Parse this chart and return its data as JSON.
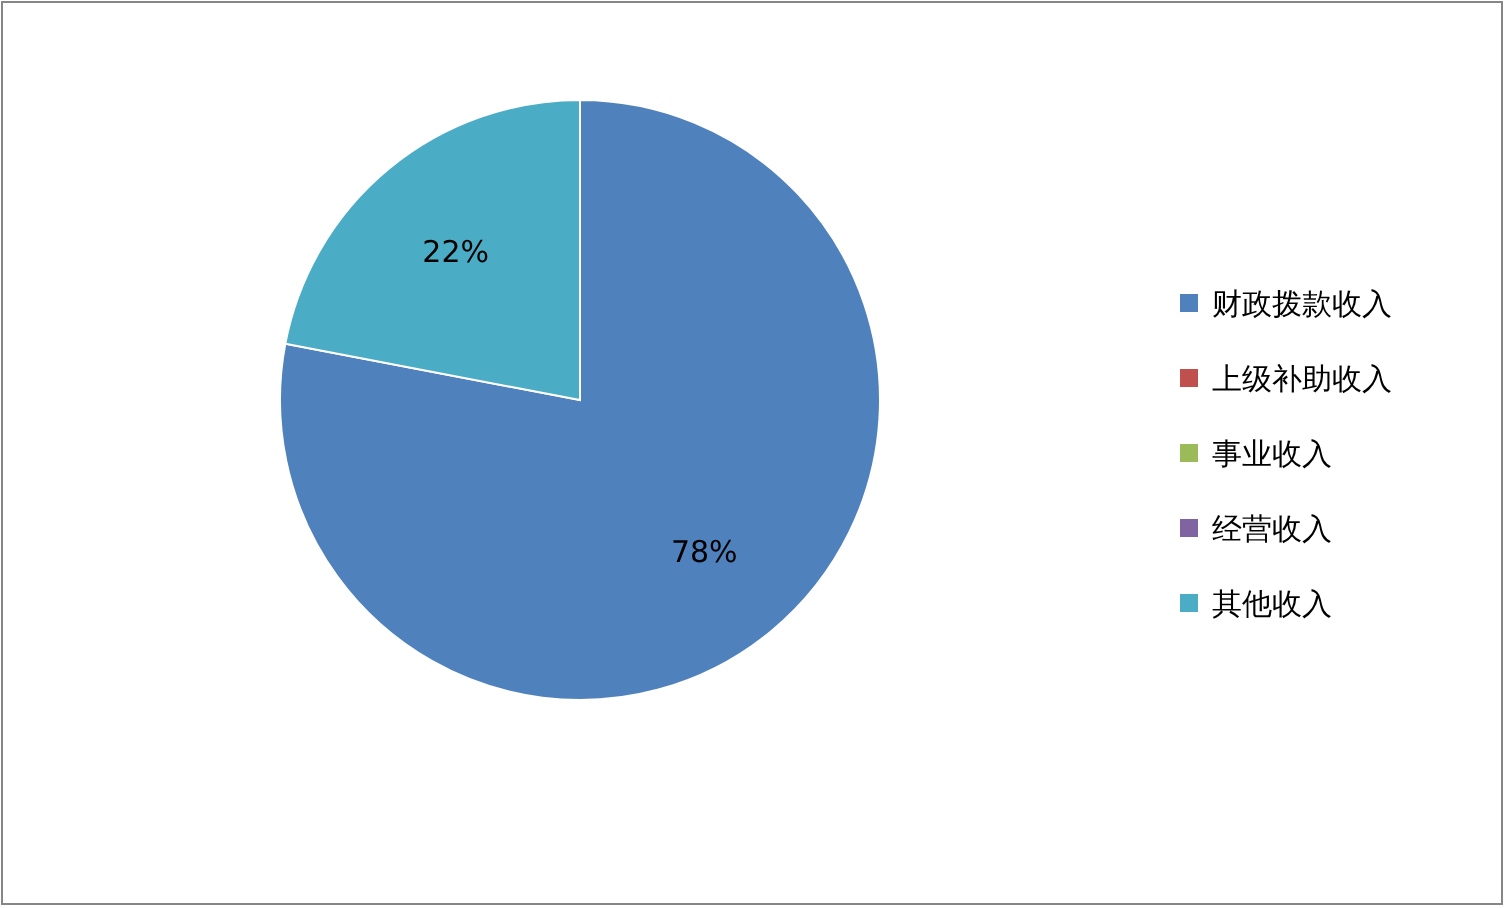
{
  "chart_data": {
    "type": "pie",
    "categories": [
      "财政拨款收入",
      "上级补助收入",
      "事业收入",
      "经营收入",
      "其他收入"
    ],
    "values": [
      78,
      0,
      0,
      0,
      22
    ],
    "colors": [
      "#4f81bd",
      "#c0504d",
      "#9bbb59",
      "#8064a2",
      "#4bacc6"
    ],
    "value_labels": [
      "78%",
      null,
      null,
      null,
      "22%"
    ],
    "legend": "right"
  }
}
